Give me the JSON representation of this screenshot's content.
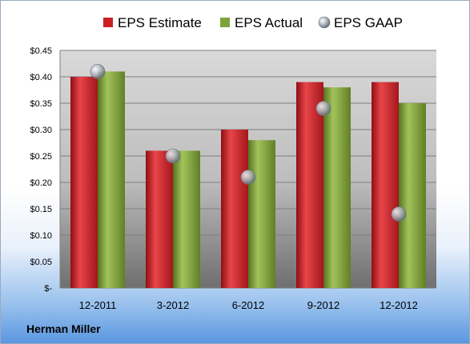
{
  "footer": {
    "company": "Herman Miller"
  },
  "colors": {
    "estimate": "#cc1f24",
    "actual": "#7ea33a",
    "gaap": "#9ea8b2"
  },
  "chart_data": {
    "type": "bar",
    "title": "",
    "xlabel": "",
    "ylabel": "",
    "categories": [
      "12-2011",
      "3-2012",
      "6-2012",
      "9-2012",
      "12-2012"
    ],
    "series": [
      {
        "name": "EPS Estimate",
        "type": "bar",
        "values": [
          0.4,
          0.26,
          0.3,
          0.39,
          0.39
        ]
      },
      {
        "name": "EPS Actual",
        "type": "bar",
        "values": [
          0.41,
          0.26,
          0.28,
          0.38,
          0.35
        ]
      },
      {
        "name": "EPS GAAP",
        "type": "scatter",
        "values": [
          0.41,
          0.25,
          0.21,
          0.34,
          0.14
        ]
      }
    ],
    "ylim": [
      0,
      0.45
    ],
    "yticks": [
      {
        "value": 0.0,
        "label": "$-"
      },
      {
        "value": 0.05,
        "label": "$0.05"
      },
      {
        "value": 0.1,
        "label": "$0.10"
      },
      {
        "value": 0.15,
        "label": "$0.15"
      },
      {
        "value": 0.2,
        "label": "$0.20"
      },
      {
        "value": 0.25,
        "label": "$0.25"
      },
      {
        "value": 0.3,
        "label": "$0.30"
      },
      {
        "value": 0.35,
        "label": "$0.35"
      },
      {
        "value": 0.4,
        "label": "$0.40"
      },
      {
        "value": 0.45,
        "label": "$0.45"
      }
    ],
    "grid": true,
    "legend": "top"
  }
}
